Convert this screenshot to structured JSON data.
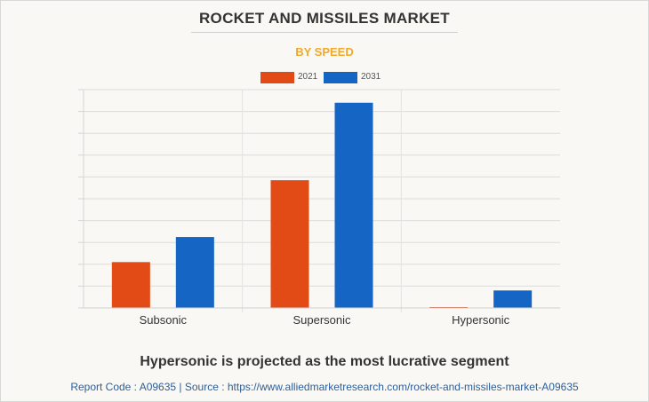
{
  "header": {
    "title": "ROCKET AND MISSILES MARKET",
    "subtitle": "BY SPEED"
  },
  "colors": {
    "subtitle": "#f0a92b",
    "series_2021": "#e24a16",
    "series_2031": "#1565c4"
  },
  "footer": {
    "caption": "Hypersonic is projected as the most lucrative segment",
    "source": "Report Code : A09635  |  Source : https://www.alliedmarketresearch.com/rocket-and-missiles-market-A09635"
  },
  "chart_data": {
    "type": "bar",
    "categories": [
      "Subsonic",
      "Supersonic",
      "Hypersonic"
    ],
    "series": [
      {
        "name": "2021",
        "values": [
          21,
          58.5,
          0.4
        ]
      },
      {
        "name": "2031",
        "values": [
          32.5,
          94,
          8
        ]
      }
    ],
    "ylim": [
      0,
      100
    ],
    "y_gridlines": 10,
    "grid": true,
    "legend": "top-center",
    "xlabel": "",
    "ylabel": ""
  }
}
